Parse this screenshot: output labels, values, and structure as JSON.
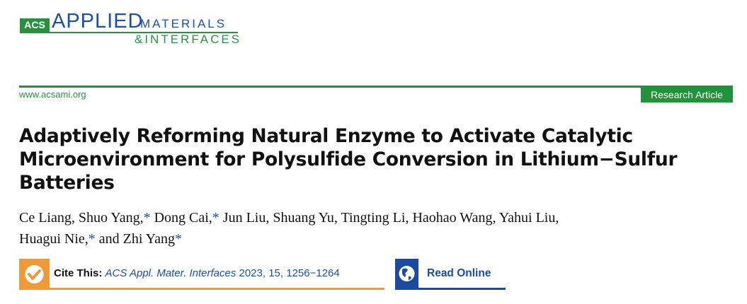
{
  "header": {
    "logo": {
      "acs": "ACS",
      "applied": "APPLIED",
      "materials": "MATERIALS",
      "interfaces": "&INTERFACES"
    },
    "website": "www.acsami.org",
    "article_type": "Research Article",
    "colors": {
      "green": "#23913b",
      "blue": "#1d4fa6",
      "orange": "#ee9a3a"
    }
  },
  "title": "Adaptively Reforming Natural Enzyme to Activate Catalytic Microenvironment for Polysulfide Conversion in Lithium−Sulfur Batteries",
  "authors": [
    {
      "name": "Ce Liang,",
      "star": ""
    },
    {
      "name": "Shuo Yang,",
      "star": "*"
    },
    {
      "name": "Dong Cai,",
      "star": "*"
    },
    {
      "name": "Jun Liu,",
      "star": ""
    },
    {
      "name": "Shuang Yu,",
      "star": ""
    },
    {
      "name": "Tingting Li,",
      "star": ""
    },
    {
      "name": "Haohao Wang,",
      "star": ""
    },
    {
      "name": "Yahui Liu,",
      "star": ""
    },
    {
      "name": "Huagui Nie,",
      "star": "*"
    },
    {
      "name": "and Zhi Yang",
      "star": "*"
    }
  ],
  "cite": {
    "label": "Cite This:",
    "journal": "ACS Appl. Mater. Interfaces",
    "details": "2023, 15, 1256−1264",
    "icon": "checkmark-icon"
  },
  "read_online": {
    "label": "Read Online",
    "icon": "globe-icon"
  }
}
